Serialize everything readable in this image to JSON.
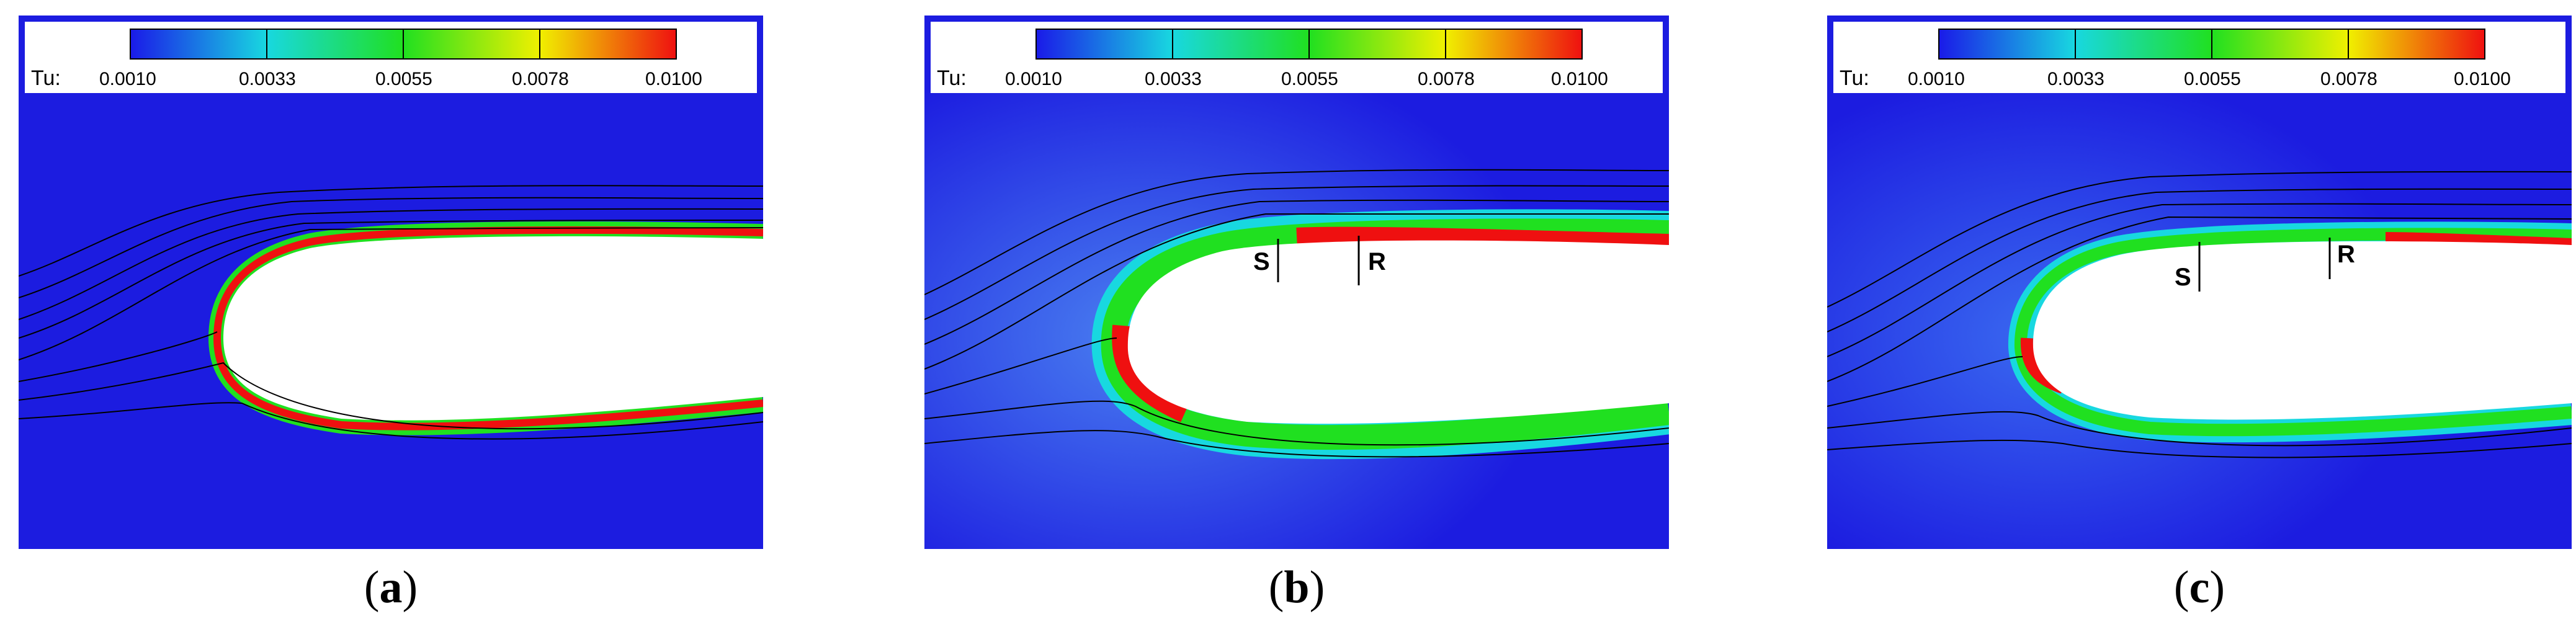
{
  "colorbar": {
    "variable_label": "Tu:",
    "ticks": [
      "0.0010",
      "0.0033",
      "0.0055",
      "0.0078",
      "0.0100"
    ]
  },
  "panels": [
    {
      "id": "a",
      "caption": "a",
      "markers": []
    },
    {
      "id": "b",
      "caption": "b",
      "markers": [
        {
          "label": "S",
          "pos": "upper-surface-1"
        },
        {
          "label": "R",
          "pos": "upper-surface-2"
        }
      ]
    },
    {
      "id": "c",
      "caption": "c",
      "markers": [
        {
          "label": "S",
          "pos": "upper-surface-1"
        },
        {
          "label": "R",
          "pos": "upper-surface-2"
        }
      ]
    }
  ],
  "colors": {
    "field": "#1c1ce0",
    "cb_blue": "#1a1ae8",
    "cb_cyan": "#18d8e0",
    "cb_green": "#20e020",
    "cb_yellow": "#f0f000",
    "cb_red": "#ef1010"
  }
}
